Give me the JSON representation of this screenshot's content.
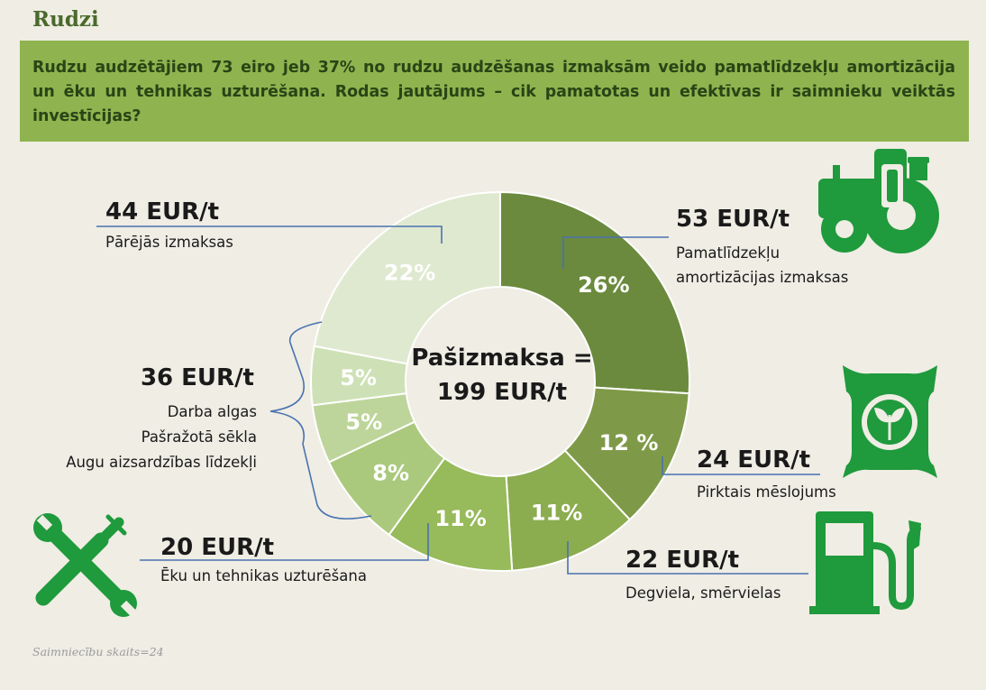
{
  "page": {
    "title": "Rudzi",
    "banner": "Rudzu audzētājiem 73 eiro jeb 37% no rudzu audzēšanas izmaksām veido pamatlīdzekļu amortizācija un ēku un tehnikas uzturēšana. Rodas jautājums – cik pamatotas un efektīvas ir saimnieku veiktās investīcijas?",
    "footnote": "Saimniecību skaits=24"
  },
  "chart_data": {
    "type": "pie",
    "center_label": [
      "Pašizmaksa =",
      "199 EUR/t"
    ],
    "slices": [
      {
        "label": "26%",
        "value": 26,
        "color": "#6b8a3d"
      },
      {
        "label": "12 %",
        "value": 12,
        "color": "#7e9a48"
      },
      {
        "label": "11%",
        "value": 11,
        "color": "#8cac50"
      },
      {
        "label": "11%",
        "value": 11,
        "color": "#97ba5a"
      },
      {
        "label": "8%",
        "value": 8,
        "color": "#aac97c"
      },
      {
        "label": "5%",
        "value": 5,
        "color": "#bdd59a"
      },
      {
        "label": "5%",
        "value": 5,
        "color": "#cee1b6"
      },
      {
        "label": "22%",
        "value": 22,
        "color": "#dfe9cf"
      }
    ],
    "callouts": {
      "amort": {
        "value": "53 EUR/t",
        "label": [
          "Pamatlīdzekļu",
          "amortizācijas izmaksas"
        ]
      },
      "fert": {
        "value": "24 EUR/t",
        "label": [
          "Pirktais mēslojums"
        ]
      },
      "fuel": {
        "value": "22 EUR/t",
        "label": [
          "Degviela, smērvielas"
        ]
      },
      "maint": {
        "value": "20 EUR/t",
        "label": [
          "Ēku un tehnikas uzturēšana"
        ]
      },
      "group": {
        "value": "36 EUR/t",
        "label": [
          "Darba algas",
          "Pašražotā sēkla",
          "Augu aizsardzības līdzekļi"
        ]
      },
      "other": {
        "value": "44 EUR/t",
        "label": [
          "Pārējās izmaksas"
        ]
      }
    },
    "icons": [
      "tractor-icon",
      "fertilizer-bag-icon",
      "fuel-pump-icon",
      "tools-icon"
    ]
  }
}
